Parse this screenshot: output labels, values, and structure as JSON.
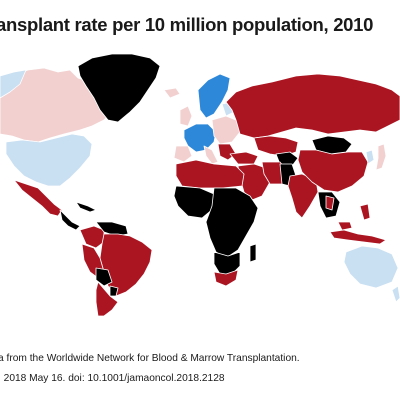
{
  "title": "ansplant rate per 10 million population, 2010",
  "source_note": "a from the Worldwide Network for Blood & Marrow Transplantation.",
  "citation": ". 2018 May 16. doi: 10.1001/jamaoncol.2018.2128",
  "colors": {
    "lowest": "#000000",
    "low": "#ab1522",
    "medium": "#f2d0d0",
    "high": "#c9dff2",
    "highest": "#2e88d9",
    "border": "#ffffff"
  }
}
